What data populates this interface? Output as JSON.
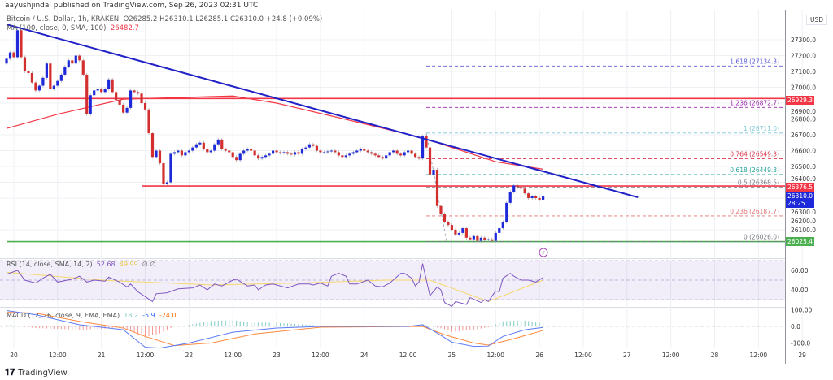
{
  "header": {
    "published": "aayushjindal published on TradingView.com, Sep 26, 2023 02:31 UTC"
  },
  "legend": {
    "symbol": "Bitcoin / U.S. Dollar, 1h, KRAKEN",
    "ohlc": "O26285.2  H26310.1  L26285.1  C26310.0  +24.8 (+0.09%)",
    "ma_label": "MA (100, close, 0, SMA, 100)",
    "ma_value": "26482.7"
  },
  "rsi_legend": {
    "label": "RSI (14, close, SMA, 14, 2)",
    "value": "52.68",
    "sma_value": "49.99",
    "extra": "∅  ∅"
  },
  "macd_legend": {
    "label": "MACD (12, 26, close, 9, EMA, EMA)",
    "hist": "18.2",
    "macd": "-5.9",
    "signal": "-24.0"
  },
  "price_axis": {
    "currency": "USD",
    "ticks": [
      "26100.0",
      "26200.0",
      "26300.0",
      "26400.0",
      "26500.0",
      "26600.0",
      "26700.0",
      "26800.0",
      "26900.0",
      "27000.0",
      "27100.0",
      "27200.0",
      "27300.0"
    ]
  },
  "rsi_axis": {
    "ticks": [
      "60.00",
      "40.00"
    ]
  },
  "macd_axis": {
    "ticks": [
      "100.00",
      "0.0",
      "-100.0"
    ]
  },
  "badges": [
    {
      "text": "26929.3",
      "color": "#f23645"
    },
    {
      "text": "26376.5",
      "color": "#f23645"
    },
    {
      "text": "26310.0",
      "sub": "28:25",
      "color": "#1e2ad9"
    },
    {
      "text": "26025.4",
      "color": "#4caf50"
    }
  ],
  "footer": {
    "brand": "TradingView"
  },
  "colors": {
    "up": "#1e2ad9",
    "down": "#d32f2f",
    "ma": "#f23645",
    "trendline": "#2121c8",
    "rsi": "#7e57c2",
    "rsi_sma": "#f5d76e",
    "macd": "#5b7bf5",
    "signal": "#ff8a3d"
  },
  "chart_data": {
    "type": "candlestick",
    "title": "Bitcoin / U.S. Dollar, 1h, KRAKEN",
    "interval": "1h",
    "start": "2023-09-19 22:00",
    "ylim": [
      26000,
      27400
    ],
    "x_ticks": [
      "20",
      "12:00",
      "21",
      "12:00",
      "22",
      "12:00",
      "23",
      "12:00",
      "24",
      "12:00",
      "25",
      "12:00",
      "26",
      "12:00",
      "27",
      "12:00",
      "28",
      "12:00",
      "29"
    ],
    "closes": [
      27180,
      27220,
      27190,
      27360,
      27190,
      27100,
      27090,
      27030,
      26980,
      27010,
      27060,
      27150,
      26990,
      27010,
      27040,
      27080,
      27130,
      27170,
      27150,
      27200,
      27170,
      27080,
      26830,
      26950,
      26980,
      26990,
      26970,
      26990,
      27050,
      26970,
      26920,
      26890,
      26840,
      26870,
      26980,
      26970,
      26960,
      26900,
      26860,
      26710,
      26560,
      26600,
      26520,
      26390,
      26400,
      26580,
      26590,
      26600,
      26570,
      26590,
      26600,
      26620,
      26640,
      26650,
      26610,
      26590,
      26600,
      26640,
      26670,
      26610,
      26600,
      26590,
      26560,
      26540,
      26580,
      26600,
      26610,
      26600,
      26570,
      26550,
      26560,
      26570,
      26580,
      26600,
      26590,
      26585,
      26590,
      26580,
      26575,
      26590,
      26580,
      26610,
      26620,
      26640,
      26630,
      26600,
      26590,
      26590,
      26595,
      26600,
      26590,
      26570,
      26560,
      26570,
      26580,
      26590,
      26600,
      26610,
      26600,
      26590,
      26580,
      26570,
      26560,
      26550,
      26570,
      26590,
      26600,
      26580,
      26570,
      26590,
      26600,
      26580,
      26560,
      26550,
      26690,
      26620,
      26450,
      26480,
      26250,
      26200,
      26150,
      26130,
      26100,
      26070,
      26080,
      26110,
      26050,
      26040,
      26060,
      26030,
      26050,
      26035,
      26040,
      26030,
      26080,
      26110,
      26150,
      26270,
      26340,
      26380,
      26370,
      26360,
      26330,
      26300,
      26310,
      26300,
      26290,
      26310.0
    ],
    "first_open": 27150,
    "ma_100": [
      [
        "2023-09-19 22:00",
        26740
      ],
      [
        "2023-09-20 12:00",
        26830
      ],
      [
        "2023-09-21 06:00",
        26925
      ],
      [
        "2023-09-22 12:00",
        26945
      ],
      [
        "2023-09-23 00:00",
        26900
      ],
      [
        "2023-09-24 00:00",
        26770
      ],
      [
        "2023-09-24 16:00",
        26680
      ],
      [
        "2023-09-25 00:00",
        26620
      ],
      [
        "2023-09-25 12:00",
        26530
      ],
      [
        "2023-09-26 01:00",
        26482.7
      ]
    ],
    "trendline": [
      [
        "2023-09-19 22:00",
        27397
      ],
      [
        "2023-09-27 03:00",
        26305
      ]
    ],
    "horizontal_lines": [
      {
        "price": 26929.3,
        "from": "2023-09-19 22:00",
        "color": "#f23645"
      },
      {
        "price": 26376.5,
        "from": "2023-09-21 11:00",
        "color": "#f23645"
      },
      {
        "price": 26025.4,
        "from": "2023-09-19 22:00",
        "color": "#4caf50"
      }
    ],
    "fibonacci": {
      "from": "2023-09-24 17:00",
      "levels": [
        {
          "label": "1.618 (27134.3)",
          "price": 27134.3,
          "color": "#5b5bd6"
        },
        {
          "label": "1.236 (26872.7)",
          "price": 26872.7,
          "color": "#9c27b0"
        },
        {
          "label": "1 (26711.0)",
          "price": 26711.0,
          "color": "#7ec8d8"
        },
        {
          "label": "0.764 (26549.3)",
          "price": 26549.3,
          "color": "#d9364a"
        },
        {
          "label": "0.618 (26449.3)",
          "price": 26449.3,
          "color": "#26a69a"
        },
        {
          "label": "0.5 (26368.5)",
          "price": 26368.5,
          "color": "#787b86"
        },
        {
          "label": "0.236 (26187.7)",
          "price": 26187.7,
          "color": "#e57373"
        },
        {
          "label": "0 (26026.0)",
          "price": 26026.0,
          "color": "#787b86"
        }
      ]
    },
    "rsi": {
      "ylim": [
        22,
        72
      ],
      "bands": [
        70,
        50,
        30
      ],
      "values": [
        [
          "2023-09-19 22:00",
          56
        ],
        [
          "2023-09-20 01:00",
          60
        ],
        [
          "2023-09-20 03:00",
          50
        ],
        [
          "2023-09-20 06:00",
          47
        ],
        [
          "2023-09-20 08:00",
          52
        ],
        [
          "2023-09-20 10:00",
          56
        ],
        [
          "2023-09-20 12:00",
          48
        ],
        [
          "2023-09-20 16:00",
          51
        ],
        [
          "2023-09-20 18:00",
          54
        ],
        [
          "2023-09-20 20:00",
          48
        ],
        [
          "2023-09-20 22:00",
          50
        ],
        [
          "2023-09-21 01:00",
          49
        ],
        [
          "2023-09-21 02:00",
          53
        ],
        [
          "2023-09-21 05:00",
          48
        ],
        [
          "2023-09-21 07:00",
          43
        ],
        [
          "2023-09-21 08:00",
          46
        ],
        [
          "2023-09-21 10:00",
          38
        ],
        [
          "2023-09-21 12:00",
          33
        ],
        [
          "2023-09-21 14:00",
          28
        ],
        [
          "2023-09-21 15:00",
          36
        ],
        [
          "2023-09-21 18:00",
          37
        ],
        [
          "2023-09-21 21:00",
          41
        ],
        [
          "2023-09-22 01:00",
          42
        ],
        [
          "2023-09-22 03:00",
          45
        ],
        [
          "2023-09-22 05:00",
          40
        ],
        [
          "2023-09-22 07:00",
          46
        ],
        [
          "2023-09-22 09:00",
          44
        ],
        [
          "2023-09-22 12:00",
          50
        ],
        [
          "2023-09-22 13:00",
          51
        ],
        [
          "2023-09-22 16:00",
          44
        ],
        [
          "2023-09-22 18:00",
          45
        ],
        [
          "2023-09-22 19:00",
          40
        ],
        [
          "2023-09-22 21:00",
          45
        ],
        [
          "2023-09-22 23:00",
          46
        ],
        [
          "2023-09-23 03:00",
          42
        ],
        [
          "2023-09-23 06:00",
          46
        ],
        [
          "2023-09-23 09:00",
          46
        ],
        [
          "2023-09-23 10:00",
          45
        ],
        [
          "2023-09-23 12:00",
          47
        ],
        [
          "2023-09-23 14:00",
          44
        ],
        [
          "2023-09-23 15:00",
          54
        ],
        [
          "2023-09-23 17:00",
          57
        ],
        [
          "2023-09-23 19:00",
          54
        ],
        [
          "2023-09-23 20:00",
          46
        ],
        [
          "2023-09-23 22:00",
          46
        ],
        [
          "2023-09-24 01:00",
          50
        ],
        [
          "2023-09-24 03:00",
          44
        ],
        [
          "2023-09-24 05:00",
          43
        ],
        [
          "2023-09-24 07:00",
          47
        ],
        [
          "2023-09-24 10:00",
          57
        ],
        [
          "2023-09-24 11:00",
          57
        ],
        [
          "2023-09-24 13:00",
          52
        ],
        [
          "2023-09-24 14:00",
          44
        ],
        [
          "2023-09-24 15:00",
          48
        ],
        [
          "2023-09-24 16:00",
          67
        ],
        [
          "2023-09-24 18:00",
          34
        ],
        [
          "2023-09-24 20:00",
          43
        ],
        [
          "2023-09-24 21:00",
          40
        ],
        [
          "2023-09-24 22:00",
          27
        ],
        [
          "2023-09-25 00:00",
          23
        ],
        [
          "2023-09-25 01:00",
          28
        ],
        [
          "2023-09-25 04:00",
          25
        ],
        [
          "2023-09-25 05:00",
          32
        ],
        [
          "2023-09-25 08:00",
          27
        ],
        [
          "2023-09-25 09:00",
          30
        ],
        [
          "2023-09-25 10:00",
          28
        ],
        [
          "2023-09-25 12:00",
          39
        ],
        [
          "2023-09-25 13:00",
          38
        ],
        [
          "2023-09-25 14:00",
          52
        ],
        [
          "2023-09-25 16:00",
          57
        ],
        [
          "2023-09-25 17:00",
          54
        ],
        [
          "2023-09-25 19:00",
          50
        ],
        [
          "2023-09-25 21:00",
          50
        ],
        [
          "2023-09-25 23:00",
          48
        ],
        [
          "2023-09-26 01:00",
          52.68
        ]
      ],
      "sma": [
        [
          "2023-09-19 22:00",
          58
        ],
        [
          "2023-09-21 00:00",
          50
        ],
        [
          "2023-09-22 06:00",
          45
        ],
        [
          "2023-09-23 06:00",
          47
        ],
        [
          "2023-09-24 06:00",
          50
        ],
        [
          "2023-09-24 18:00",
          50
        ],
        [
          "2023-09-25 10:00",
          28
        ],
        [
          "2023-09-26 01:00",
          49.99
        ]
      ]
    },
    "macd": {
      "ylim": [
        -160,
        110
      ],
      "macd": [
        [
          "2023-09-19 22:00",
          95
        ],
        [
          "2023-09-20 06:00",
          70
        ],
        [
          "2023-09-20 18:00",
          10
        ],
        [
          "2023-09-21 06:00",
          -20
        ],
        [
          "2023-09-21 12:00",
          -125
        ],
        [
          "2023-09-21 16:00",
          -130
        ],
        [
          "2023-09-22 00:00",
          -100
        ],
        [
          "2023-09-22 12:00",
          -35
        ],
        [
          "2023-09-23 00:00",
          -10
        ],
        [
          "2023-09-23 12:00",
          0
        ],
        [
          "2023-09-24 12:00",
          0
        ],
        [
          "2023-09-24 16:00",
          10
        ],
        [
          "2023-09-24 20:00",
          -40
        ],
        [
          "2023-09-25 00:00",
          -95
        ],
        [
          "2023-09-25 06:00",
          -120
        ],
        [
          "2023-09-25 10:00",
          -118
        ],
        [
          "2023-09-25 14:00",
          -60
        ],
        [
          "2023-09-25 20:00",
          -20
        ],
        [
          "2023-09-26 01:00",
          -5.9
        ]
      ],
      "signal": [
        [
          "2023-09-19 22:00",
          85
        ],
        [
          "2023-09-20 06:00",
          80
        ],
        [
          "2023-09-20 18:00",
          30
        ],
        [
          "2023-09-21 06:00",
          -10
        ],
        [
          "2023-09-21 12:00",
          -60
        ],
        [
          "2023-09-21 20:00",
          -115
        ],
        [
          "2023-09-22 06:00",
          -100
        ],
        [
          "2023-09-22 18:00",
          -45
        ],
        [
          "2023-09-23 12:00",
          -5
        ],
        [
          "2023-09-24 16:00",
          0
        ],
        [
          "2023-09-24 22:00",
          -50
        ],
        [
          "2023-09-25 06:00",
          -100
        ],
        [
          "2023-09-25 10:00",
          -112
        ],
        [
          "2023-09-25 16:00",
          -80
        ],
        [
          "2023-09-26 01:00",
          -24.0
        ]
      ]
    }
  }
}
